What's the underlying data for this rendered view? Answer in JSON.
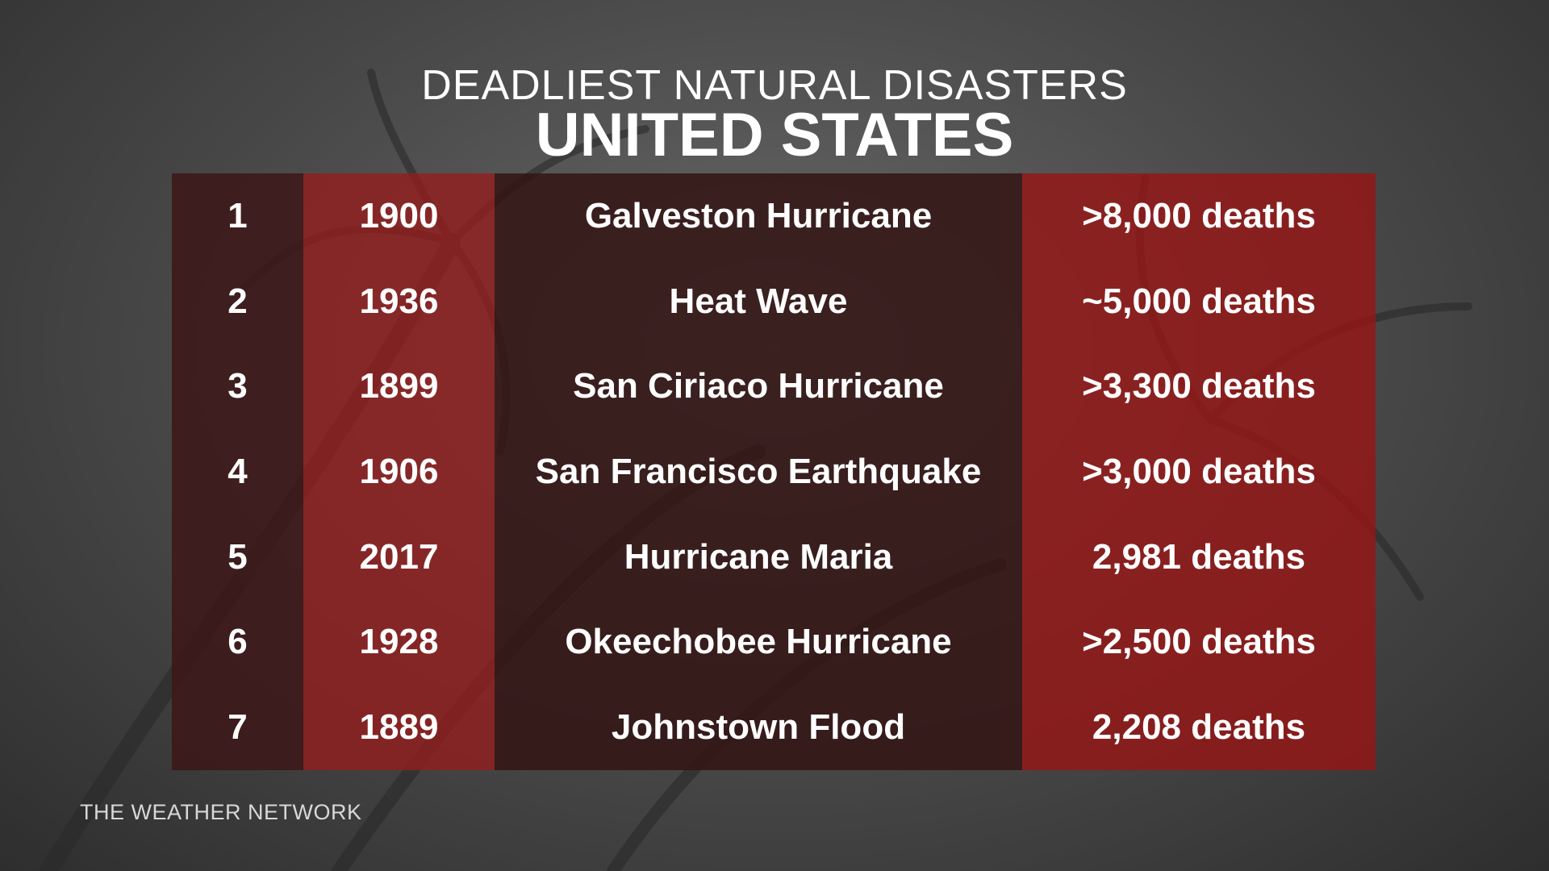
{
  "header": {
    "title": "DEADLIEST NATURAL DISASTERS",
    "subtitle": "UNITED STATES"
  },
  "table": {
    "rows": [
      [
        1,
        1900,
        "Galveston Hurricane",
        ">8,000 deaths"
      ],
      [
        2,
        1936,
        "Heat Wave",
        "~5,000 deaths"
      ],
      [
        3,
        1899,
        "San Ciriaco Hurricane",
        ">3,300 deaths"
      ],
      [
        4,
        1906,
        "San Francisco Earthquake",
        ">3,000 deaths"
      ],
      [
        5,
        2017,
        "Hurricane Maria",
        "2,981 deaths"
      ],
      [
        6,
        1928,
        "Okeechobee Hurricane",
        ">2,500 deaths"
      ],
      [
        7,
        1889,
        "Johnstown Flood",
        "2,208 deaths"
      ]
    ]
  },
  "footer": {
    "brand": "THE WEATHER NETWORK"
  }
}
